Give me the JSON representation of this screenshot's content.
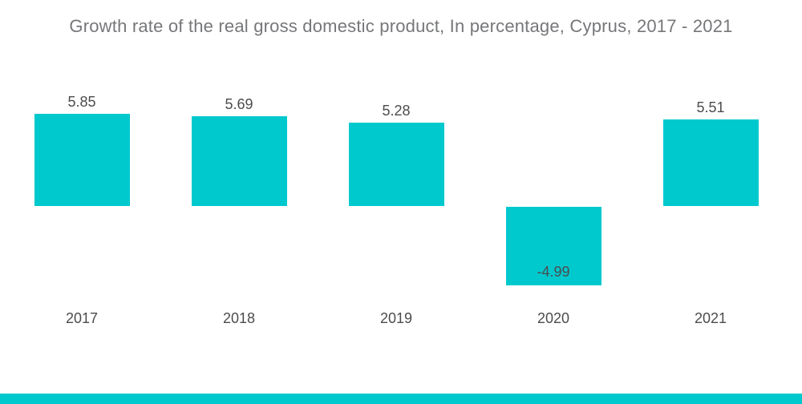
{
  "title": "Growth rate of the real gross domestic product, In percentage, Cyprus, 2017 - 2021",
  "colors": {
    "bar": "#00C9CE",
    "accent_strip": "#00C9CE",
    "title_text": "#76777A",
    "label_text": "#4B4C4E",
    "background": "#FFFFFF"
  },
  "chart_data": {
    "type": "bar",
    "title": "Growth rate of the real gross domestic product, In percentage, Cyprus, 2017 - 2021",
    "categories": [
      "2017",
      "2018",
      "2019",
      "2020",
      "2021"
    ],
    "values": [
      5.85,
      5.69,
      5.28,
      -4.99,
      5.51
    ],
    "value_labels": [
      "5.85",
      "5.69",
      "5.28",
      "-4.99",
      "5.51"
    ],
    "xlabel": "",
    "ylabel": "",
    "ylim": [
      -6,
      7
    ],
    "grid": false,
    "legend": null,
    "bar_color": "#00C9CE",
    "value_label_position": {
      "positive": "above-bar",
      "negative": "inside-bar-bottom"
    }
  }
}
